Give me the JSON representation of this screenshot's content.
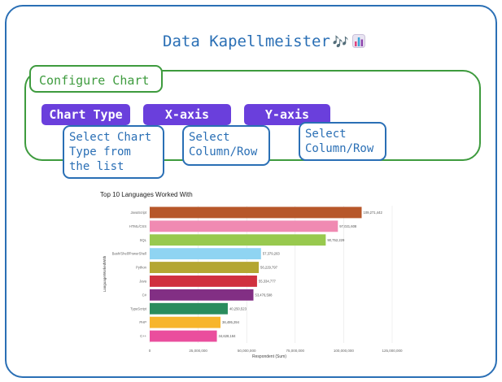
{
  "header": {
    "title": "Data Kapellmeister",
    "title_emoji": "🎶"
  },
  "config": {
    "label": "Configure Chart",
    "buttons": [
      {
        "label": "Chart Type",
        "hint": "Select Chart\nType from\nthe list"
      },
      {
        "label": "X-axis",
        "hint": "Select\nColumn/Row"
      },
      {
        "label": "Y-axis",
        "hint": "Select\nColumn/Row"
      }
    ]
  },
  "chart_data": {
    "type": "bar",
    "orientation": "horizontal",
    "title": "Top 10 Languages Worked With",
    "xlabel": "Respondent (Sum)",
    "ylabel": "LanguageWorkedWith",
    "xlim": [
      0,
      125000000
    ],
    "xticks": [
      "0",
      "25,000,000",
      "50,000,000",
      "75,000,000",
      "100,000,000",
      "125,000,000"
    ],
    "categories": [
      "JavaScript",
      "HTML/CSS",
      "SQL",
      "Bash/Shell/PowerShell",
      "Python",
      "Java",
      "C#",
      "TypeScript",
      "PHP",
      "C++"
    ],
    "values": [
      109271442,
      97021608,
      90752229,
      57379263,
      56229797,
      55334777,
      53476598,
      40250523,
      36495294,
      34628184
    ],
    "value_labels": [
      "109,271,442",
      "97,021,608",
      "90,752,229",
      "57,379,263",
      "56,229,797",
      "55,334,777",
      "53,476,598",
      "40,250,523",
      "36,495,294",
      "34,628,184"
    ],
    "colors": [
      "#b7572a",
      "#f08ab2",
      "#98c94e",
      "#8fd4f2",
      "#b4a632",
      "#d0303f",
      "#822f84",
      "#2a8c5d",
      "#f7b52c",
      "#ea4e9d"
    ],
    "grid": true
  }
}
